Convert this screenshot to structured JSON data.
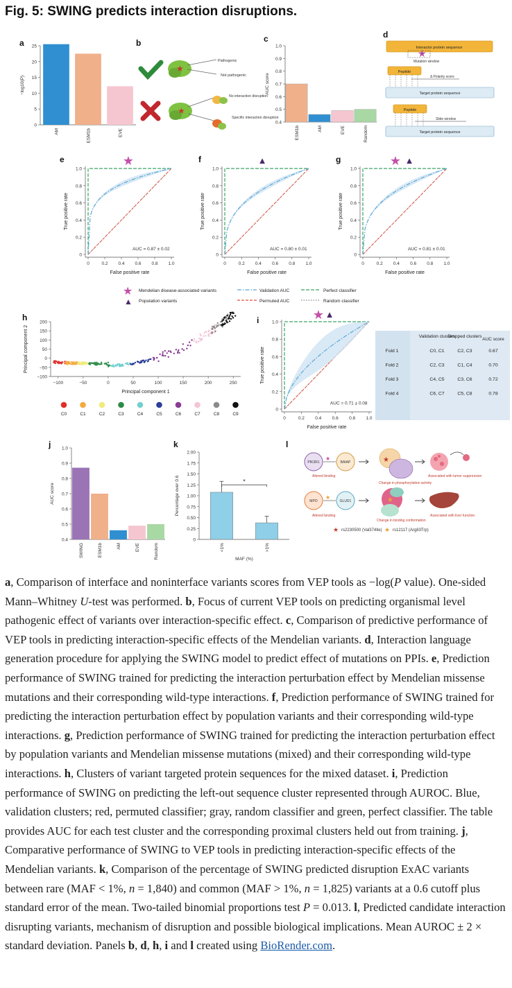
{
  "figure_title": "Fig. 5: SWING predicts interaction disruptions.",
  "panel_letters": {
    "a": "a",
    "b": "b",
    "c": "c",
    "d": "d",
    "e": "e",
    "f": "f",
    "g": "g",
    "h": "h",
    "i": "i",
    "j": "j",
    "k": "k",
    "l": "l"
  },
  "colors": {
    "swing": "#9b74b5",
    "esm": "#f0b08a",
    "am": "#2f8fd1",
    "eve": "#f6c6d0",
    "random": "#a8d8a3",
    "k_bar": "#8fcfe8",
    "roc_blue": "#5aa8d6",
    "roc_red": "#e0503a",
    "roc_green": "#3aa364"
  },
  "chart_data": [
    {
      "id": "a",
      "type": "bar",
      "categories": [
        "AM",
        "ESM1b",
        "EVE"
      ],
      "values": [
        25.5,
        22.5,
        12.2
      ],
      "ylabel": "−log10(P)",
      "ylim": [
        0,
        25
      ],
      "yticks": [
        0,
        5,
        10,
        15,
        20,
        25
      ]
    },
    {
      "id": "c",
      "type": "bar",
      "categories": [
        "ESM1b",
        "AM",
        "EVE",
        "Random"
      ],
      "values": [
        0.7,
        0.46,
        0.49,
        0.5
      ],
      "ylabel": "AUC score",
      "ylim": [
        0.4,
        1.0
      ],
      "yticks": [
        "0.4",
        "0.5",
        "0.6",
        "0.7",
        "0.8",
        "0.9",
        "1.0"
      ]
    },
    {
      "id": "e",
      "type": "line",
      "auc_text": "AUC = 0.87 ± 0.02",
      "xlabel": "False positive rate",
      "ylabel": "True positive rate",
      "ticks": [
        "0",
        "0.2",
        "0.4",
        "0.6",
        "0.8",
        "1.0"
      ],
      "curve_power": 0.22
    },
    {
      "id": "f",
      "type": "line",
      "auc_text": "AUC = 0.80 ± 0.01",
      "xlabel": "False positive rate",
      "ylabel": "True positive rate",
      "ticks": [
        "0",
        "0.2",
        "0.4",
        "0.6",
        "0.8",
        "1.0"
      ],
      "curve_power": 0.35
    },
    {
      "id": "g",
      "type": "line",
      "auc_text": "AUC = 0.81 ± 0.01",
      "xlabel": "False positive rate",
      "ylabel": "True positive rate",
      "ticks": [
        "0",
        "0.2",
        "0.4",
        "0.6",
        "0.8",
        "1.0"
      ],
      "curve_power": 0.33
    },
    {
      "id": "h",
      "type": "scatter",
      "xlabel": "Principal component 1",
      "ylabel": "Principal component 2",
      "xticks": [
        "−100",
        "−50",
        "0",
        "50",
        "100",
        "150",
        "200",
        "250"
      ],
      "yticks": [
        "−100",
        "−50",
        "0",
        "50",
        "100",
        "150",
        "200"
      ],
      "xlim": [
        -115,
        265
      ],
      "ylim": [
        -100,
        200
      ],
      "clusters": [
        "C0",
        "C1",
        "C2",
        "C3",
        "C4",
        "C5",
        "C6",
        "C7",
        "C8",
        "C9"
      ],
      "cluster_colors": [
        "#e0302a",
        "#f3a93c",
        "#f2ea7a",
        "#2b8b46",
        "#74cfcf",
        "#2c3f9a",
        "#8a3b92",
        "#f4c4d6",
        "#8a8a8a",
        "#111111"
      ]
    },
    {
      "id": "i",
      "type": "line",
      "auc_text": "AUC = 0.71 ± 0.08",
      "xlabel": "False positive rate",
      "ylabel": "True positive rate",
      "ticks": [
        "0",
        "0.2",
        "0.4",
        "0.6",
        "0.8",
        "1.0"
      ],
      "curve_power": 0.55
    },
    {
      "id": "j",
      "type": "bar",
      "categories": [
        "SWING",
        "ESM1b",
        "AM",
        "EVE",
        "Random"
      ],
      "values": [
        0.87,
        0.7,
        0.46,
        0.49,
        0.5
      ],
      "ylabel": "AUC score",
      "ylim": [
        0.4,
        1.0
      ],
      "yticks": [
        "0.4",
        "0.5",
        "0.6",
        "0.7",
        "0.8",
        "0.9",
        "1.0"
      ]
    },
    {
      "id": "k",
      "type": "bar",
      "categories": [
        "<1%",
        ">1%"
      ],
      "values": [
        1.08,
        0.38
      ],
      "errors": [
        0.25,
        0.15
      ],
      "ylabel": "Percentage over 0.6",
      "xlabel": "MAF (%)",
      "ylim": [
        0,
        2.0
      ],
      "yticks": [
        "0",
        "0.25",
        "0.50",
        "0.75",
        "1.00",
        "1.25",
        "1.50",
        "1.75",
        "2.00"
      ],
      "significance": "*"
    }
  ],
  "fold_table": {
    "headers": [
      "Validation clusters",
      "Dropped clusters",
      "AUC score"
    ],
    "rows": [
      {
        "fold": "Fold 1",
        "validation": "C0, C1",
        "dropped": "C2, C3",
        "auc": "0.67"
      },
      {
        "fold": "Fold 2",
        "validation": "C2, C3",
        "dropped": "C1, C4",
        "auc": "0.70"
      },
      {
        "fold": "Fold 3",
        "validation": "C4, C5",
        "dropped": "C3, C6",
        "auc": "0.72"
      },
      {
        "fold": "Fold 4",
        "validation": "C6, C7",
        "dropped": "C5, C8",
        "auc": "0.78"
      }
    ]
  },
  "legend": {
    "mendelian": "Mendelian disease-associated variants",
    "population": "Population variants",
    "validation": "Validation AUC",
    "permuted": "Permuted AUC",
    "perfect": "Perfect classifier",
    "random": "Random classifier"
  },
  "panel_b": {
    "pathogenic": "Pathogenic",
    "not_pathogenic": "Not pathogenic",
    "no_disruption": "No interaction disruption",
    "specific": "Specific interaction disruption"
  },
  "panel_d": {
    "interactor": "Interactor protein sequence",
    "mutation_window": "Mutation window",
    "peptide": "Peptide",
    "polarity": "Δ Polarity score",
    "target": "Target protein sequence",
    "slide": "Slide window"
  },
  "panel_l": {
    "pik3r1": "PIK3R1",
    "baiap": "BAIAP",
    "altered1": "Altered binding",
    "change1": "Change in phosphorylation activity",
    "assoc1": "Associated with tumor suppression",
    "mpo": "MPO",
    "gluc": "GLUD1",
    "altered2": "Altered binding",
    "change2": "Change in binding conformation",
    "assoc2": "Associated with liver function",
    "rs1": "rs2230500 (Val374Ile)",
    "rs2": "rs12117 (Arg83Trp)"
  },
  "caption": [
    {
      "b": "a"
    },
    {
      "t": ", Comparison of interface and noninterface variants scores from VEP tools as −log("
    },
    {
      "i": "P"
    },
    {
      "t": " value). One-sided Mann–Whitney "
    },
    {
      "i": "U"
    },
    {
      "t": "-test was performed. "
    },
    {
      "b": "b"
    },
    {
      "t": ", Focus of current VEP tools on predicting organismal level pathogenic effect of variants over interaction-specific effect. "
    },
    {
      "b": "c"
    },
    {
      "t": ", Comparison of predictive performance of VEP tools in predicting interaction-specific effects of the Mendelian variants. "
    },
    {
      "b": "d"
    },
    {
      "t": ", Interaction language generation procedure for applying the SWING model to predict effect of mutations on PPIs. "
    },
    {
      "b": "e"
    },
    {
      "t": ", Prediction performance of SWING trained for predicting the interaction perturbation effect by Mendelian missense mutations and their corresponding wild-type interactions. "
    },
    {
      "b": "f"
    },
    {
      "t": ", Prediction performance of SWING trained for predicting the interaction perturbation effect by population variants and their corresponding wild-type interactions. "
    },
    {
      "b": "g"
    },
    {
      "t": ", Prediction performance of SWING trained for predicting the interaction perturbation effect by population variants and Mendelian missense mutations (mixed) and their corresponding wild-type interactions. "
    },
    {
      "b": "h"
    },
    {
      "t": ", Clusters of variant targeted protein sequences for the mixed dataset. "
    },
    {
      "b": "i"
    },
    {
      "t": ", Prediction performance of SWING on predicting the left-out sequence cluster represented through AUROC. Blue, validation clusters; red, permuted classifier; gray, random classifier and green, perfect classifier. The table provides AUC for each test cluster and the corresponding proximal clusters held out from training. "
    },
    {
      "b": "j"
    },
    {
      "t": ", Comparative performance of SWING to VEP tools in predicting interaction-specific effects of the Mendelian variants. "
    },
    {
      "b": "k"
    },
    {
      "t": ", Comparison of the percentage of SWING predicted disruption ExAC variants between rare (MAF < 1%, "
    },
    {
      "i": "n"
    },
    {
      "t": " = 1,840) and common (MAF > 1%, "
    },
    {
      "i": "n"
    },
    {
      "t": " = 1,825) variants at a 0.6 cutoff plus standard error of the mean. Two-tailed binomial proportions test "
    },
    {
      "i": "P"
    },
    {
      "t": " = 0.013. "
    },
    {
      "b": "l"
    },
    {
      "t": ", Predicted candidate interaction disrupting variants, mechanism of disruption and possible biological implications. Mean AUROC ± 2 × standard deviation. Panels "
    },
    {
      "b": "b"
    },
    {
      "t": ", "
    },
    {
      "b": "d"
    },
    {
      "t": ", "
    },
    {
      "b": "h"
    },
    {
      "t": ", "
    },
    {
      "b": "i"
    },
    {
      "t": " and "
    },
    {
      "b": "l"
    },
    {
      "t": " created using "
    },
    {
      "link": "BioRender.com"
    },
    {
      "t": "."
    }
  ]
}
